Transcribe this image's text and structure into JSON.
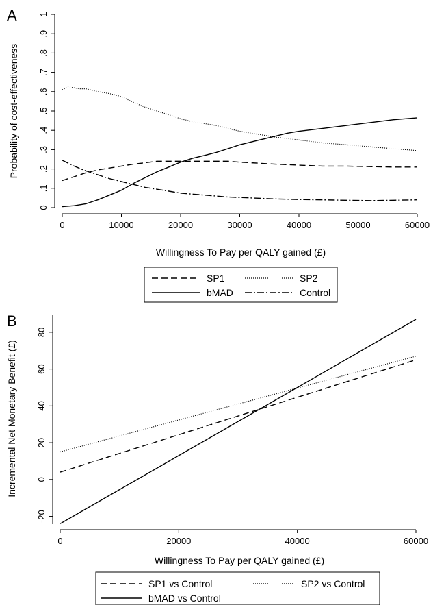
{
  "panels": [
    {
      "panel_letter": "A",
      "chart_data": {
        "type": "line",
        "xlabel": "Willingness To Pay per QALY gained (£)",
        "ylabel": "Probability of cost-effectiveness",
        "xlim": [
          0,
          60000
        ],
        "ylim": [
          0,
          1
        ],
        "x_ticks": [
          0,
          10000,
          20000,
          30000,
          40000,
          50000,
          60000
        ],
        "x_tick_labels": [
          "0",
          "10000",
          "20000",
          "30000",
          "40000",
          "50000",
          "60000"
        ],
        "y_ticks": [
          0,
          0.1,
          0.2,
          0.3,
          0.4,
          0.5,
          0.6,
          0.7,
          0.8,
          0.9,
          1
        ],
        "y_tick_labels": [
          "0",
          ".1",
          ".2",
          ".3",
          ".4",
          ".5",
          ".6",
          ".7",
          ".8",
          ".9",
          "1"
        ],
        "grid": false,
        "legend_position": "bottom",
        "series": [
          {
            "name": "SP1",
            "style": "dashed",
            "x": [
              0,
              2000,
              4000,
              6000,
              8000,
              10000,
              12000,
              14000,
              16000,
              18000,
              20000,
              22000,
              25000,
              28000,
              30000,
              33000,
              36000,
              40000,
              44000,
              48000,
              52000,
              56000,
              60000
            ],
            "y": [
              0.14,
              0.16,
              0.18,
              0.195,
              0.205,
              0.215,
              0.225,
              0.232,
              0.24,
              0.24,
              0.24,
              0.24,
              0.24,
              0.24,
              0.235,
              0.23,
              0.225,
              0.22,
              0.215,
              0.215,
              0.212,
              0.21,
              0.21
            ]
          },
          {
            "name": "SP2",
            "style": "dotted",
            "x": [
              0,
              1000,
              2000,
              3000,
              4000,
              6000,
              8000,
              10000,
              12000,
              14000,
              16000,
              18000,
              20000,
              22000,
              24000,
              26000,
              28000,
              30000,
              33000,
              36000,
              40000,
              44000,
              48000,
              52000,
              56000,
              60000
            ],
            "y": [
              0.61,
              0.625,
              0.62,
              0.615,
              0.615,
              0.6,
              0.59,
              0.575,
              0.545,
              0.52,
              0.5,
              0.48,
              0.46,
              0.445,
              0.435,
              0.425,
              0.41,
              0.395,
              0.38,
              0.365,
              0.35,
              0.335,
              0.325,
              0.315,
              0.305,
              0.295
            ]
          },
          {
            "name": "bMAD",
            "style": "solid",
            "x": [
              0,
              2000,
              4000,
              6000,
              8000,
              10000,
              12000,
              14000,
              16000,
              18000,
              20000,
              22000,
              24000,
              26000,
              28000,
              30000,
              32000,
              34000,
              36000,
              38000,
              40000,
              44000,
              48000,
              52000,
              56000,
              60000
            ],
            "y": [
              0.005,
              0.01,
              0.02,
              0.04,
              0.065,
              0.09,
              0.125,
              0.155,
              0.185,
              0.21,
              0.235,
              0.255,
              0.27,
              0.285,
              0.305,
              0.325,
              0.34,
              0.355,
              0.37,
              0.385,
              0.395,
              0.41,
              0.425,
              0.44,
              0.455,
              0.465
            ]
          },
          {
            "name": "Control",
            "style": "dashdot",
            "x": [
              0,
              2000,
              4000,
              6000,
              8000,
              10000,
              12000,
              14000,
              16000,
              18000,
              20000,
              24000,
              28000,
              32000,
              36000,
              40000,
              44000,
              48000,
              52000,
              56000,
              60000
            ],
            "y": [
              0.245,
              0.215,
              0.19,
              0.17,
              0.15,
              0.135,
              0.12,
              0.105,
              0.095,
              0.085,
              0.075,
              0.065,
              0.055,
              0.05,
              0.045,
              0.042,
              0.04,
              0.038,
              0.036,
              0.038,
              0.04
            ]
          }
        ]
      }
    },
    {
      "panel_letter": "B",
      "chart_data": {
        "type": "line",
        "xlabel": "Willingness To Pay per QALY gained (£)",
        "ylabel": "Incremental Net Monetary Benefit (£)",
        "xlim": [
          0,
          60000
        ],
        "ylim": [
          -25,
          90
        ],
        "x_ticks": [
          0,
          20000,
          40000,
          60000
        ],
        "x_tick_labels": [
          "0",
          "20000",
          "40000",
          "60000"
        ],
        "y_ticks": [
          -20,
          0,
          20,
          40,
          60,
          80
        ],
        "y_tick_labels": [
          "-20",
          "0",
          "20",
          "40",
          "60",
          "80"
        ],
        "grid": false,
        "legend_position": "bottom",
        "series": [
          {
            "name": "SP1 vs Control",
            "style": "dashed",
            "x": [
              0,
              60000
            ],
            "y": [
              4,
              65
            ]
          },
          {
            "name": "SP2 vs Control",
            "style": "dotted",
            "x": [
              0,
              60000
            ],
            "y": [
              15,
              67
            ]
          },
          {
            "name": "bMAD vs Control",
            "style": "solid",
            "x": [
              0,
              60000
            ],
            "y": [
              -24,
              87
            ]
          }
        ]
      }
    }
  ]
}
